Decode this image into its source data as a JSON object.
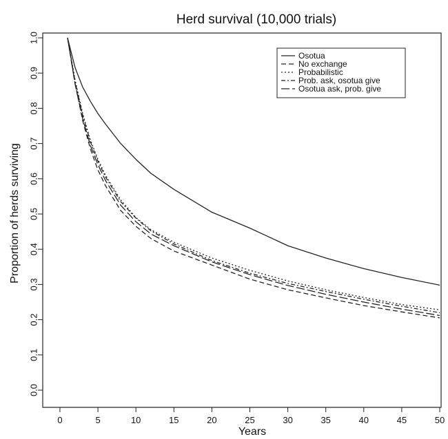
{
  "chart_data": {
    "type": "line",
    "title": "Herd survival (10,000 trials)",
    "xlabel": "Years",
    "ylabel": "Proportion of herds surviving",
    "xlim": [
      1,
      50
    ],
    "ylim": [
      0,
      1
    ],
    "x_ticks": [
      0,
      5,
      10,
      15,
      20,
      25,
      30,
      35,
      40,
      45,
      50
    ],
    "y_ticks": [
      "0.0",
      "0.1",
      "0.2",
      "0.3",
      "0.4",
      "0.5",
      "0.6",
      "0.7",
      "0.8",
      "0.9",
      "1.0"
    ],
    "grid": false,
    "legend_position": "top-right",
    "x": [
      1,
      2,
      3,
      4,
      5,
      6,
      8,
      10,
      12,
      15,
      20,
      25,
      30,
      35,
      40,
      45,
      50
    ],
    "series": [
      {
        "name": "Osotua",
        "dash": "",
        "values": [
          1.0,
          0.915,
          0.86,
          0.82,
          0.785,
          0.755,
          0.7,
          0.655,
          0.615,
          0.57,
          0.505,
          0.46,
          0.41,
          0.375,
          0.345,
          0.32,
          0.298
        ]
      },
      {
        "name": "No exchange",
        "dash": "7 4",
        "values": [
          1.0,
          0.87,
          0.765,
          0.685,
          0.625,
          0.58,
          0.51,
          0.465,
          0.43,
          0.395,
          0.355,
          0.315,
          0.285,
          0.262,
          0.24,
          0.222,
          0.205
        ]
      },
      {
        "name": "Probabilistic",
        "dash": "2 3",
        "values": [
          1.0,
          0.88,
          0.785,
          0.71,
          0.655,
          0.61,
          0.54,
          0.49,
          0.455,
          0.42,
          0.375,
          0.34,
          0.31,
          0.285,
          0.263,
          0.243,
          0.228
        ]
      },
      {
        "name": "Prob. ask, osotua give",
        "dash": "6 3 2 3",
        "values": [
          1.0,
          0.875,
          0.78,
          0.705,
          0.65,
          0.605,
          0.535,
          0.488,
          0.452,
          0.415,
          0.368,
          0.332,
          0.303,
          0.28,
          0.258,
          0.238,
          0.22
        ]
      },
      {
        "name": "Osotua ask, prob. give",
        "dash": "12 4",
        "values": [
          1.0,
          0.868,
          0.77,
          0.695,
          0.64,
          0.595,
          0.525,
          0.478,
          0.443,
          0.41,
          0.364,
          0.328,
          0.297,
          0.272,
          0.25,
          0.23,
          0.212
        ]
      }
    ]
  }
}
